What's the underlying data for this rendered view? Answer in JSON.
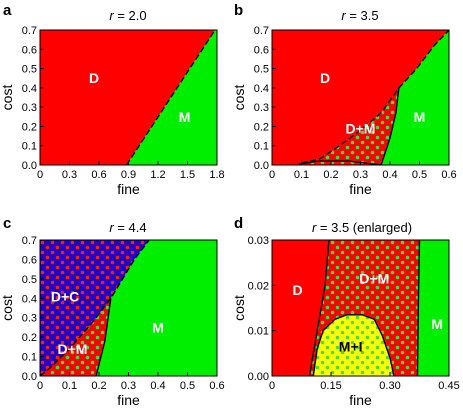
{
  "colors": {
    "D": "#ff0000",
    "M": "#00ee00",
    "C": "#2200cc",
    "I": "#ffff00",
    "dots_green": "#44dd44",
    "dots_blue": "#4433ff",
    "dots_red": "#ff2200"
  },
  "chart_data": [
    {
      "type": "phase-diagram",
      "panel": "a",
      "title": "r = 2.0",
      "title_prefix": "r",
      "title_value": " = 2.0",
      "xlabel": "fine",
      "ylabel": "cost",
      "xlim": [
        0,
        1.8
      ],
      "ylim": [
        0,
        0.7
      ],
      "xticks": [
        "0",
        "0.3",
        "0.6",
        "0.9",
        "1.2",
        "1.5",
        "1.8"
      ],
      "xtick_values": [
        0,
        0.3,
        0.6,
        0.9,
        1.2,
        1.5,
        1.8
      ],
      "yticks": [
        "0.0",
        "0.1",
        "0.2",
        "0.3",
        "0.4",
        "0.5",
        "0.6",
        "0.7"
      ],
      "ytick_values": [
        0,
        0.1,
        0.2,
        0.3,
        0.4,
        0.5,
        0.6,
        0.7
      ],
      "regions": [
        {
          "label": "D",
          "fill": "D",
          "label_at": [
            0.55,
            0.45
          ],
          "polygon": [
            [
              0,
              0
            ],
            [
              0.88,
              0
            ],
            [
              1.78,
              0.7
            ],
            [
              0,
              0.7
            ]
          ]
        },
        {
          "label": "M",
          "fill": "M",
          "label_at": [
            1.47,
            0.25
          ],
          "polygon": [
            [
              0.88,
              0
            ],
            [
              1.8,
              0
            ],
            [
              1.8,
              0.7
            ],
            [
              1.78,
              0.7
            ]
          ]
        }
      ],
      "boundaries": [
        {
          "style": "dashed",
          "points": [
            [
              0.88,
              0
            ],
            [
              1.78,
              0.7
            ]
          ]
        }
      ]
    },
    {
      "type": "phase-diagram",
      "panel": "b",
      "title": "r = 3.5",
      "title_prefix": "r",
      "title_value": " = 3.5",
      "xlabel": "fine",
      "ylabel": "cost",
      "xlim": [
        0,
        0.6
      ],
      "ylim": [
        0,
        0.7
      ],
      "xticks": [
        "0",
        "0.1",
        "0.2",
        "0.3",
        "0.4",
        "0.5",
        "0.6"
      ],
      "xtick_values": [
        0,
        0.1,
        0.2,
        0.3,
        0.4,
        0.5,
        0.6
      ],
      "yticks": [
        "0.0",
        "0.1",
        "0.2",
        "0.3",
        "0.4",
        "0.5",
        "0.6",
        "0.7"
      ],
      "ytick_values": [
        0,
        0.1,
        0.2,
        0.3,
        0.4,
        0.5,
        0.6,
        0.7
      ],
      "regions": [
        {
          "label": "D",
          "fill": "D",
          "label_at": [
            0.18,
            0.45
          ],
          "polygon": [
            [
              0,
              0
            ],
            [
              0.09,
              0
            ],
            [
              0.1,
              0.01
            ],
            [
              0.16,
              0.03
            ],
            [
              0.22,
              0.09
            ],
            [
              0.3,
              0.18
            ],
            [
              0.37,
              0.27
            ],
            [
              0.43,
              0.4
            ],
            [
              0.49,
              0.5
            ],
            [
              0.55,
              0.62
            ],
            [
              0.6,
              0.7
            ],
            [
              0,
              0.7
            ]
          ]
        },
        {
          "label": "D+M",
          "fill": "D",
          "dots": "dots_green",
          "label_at": [
            0.3,
            0.19
          ],
          "polygon": [
            [
              0.09,
              0
            ],
            [
              0.37,
              0
            ],
            [
              0.4,
              0.14
            ],
            [
              0.42,
              0.27
            ],
            [
              0.43,
              0.4
            ],
            [
              0.37,
              0.27
            ],
            [
              0.3,
              0.18
            ],
            [
              0.22,
              0.09
            ],
            [
              0.16,
              0.03
            ],
            [
              0.1,
              0.01
            ]
          ]
        },
        {
          "label": "M",
          "fill": "M",
          "label_at": [
            0.5,
            0.25
          ],
          "polygon": [
            [
              0.37,
              0
            ],
            [
              0.6,
              0
            ],
            [
              0.6,
              0.7
            ],
            [
              0.55,
              0.62
            ],
            [
              0.49,
              0.5
            ],
            [
              0.43,
              0.4
            ],
            [
              0.42,
              0.27
            ],
            [
              0.4,
              0.14
            ]
          ]
        }
      ],
      "boundaries": [
        {
          "style": "solid",
          "points": [
            [
              0.09,
              0.005
            ],
            [
              0.16,
              0.02
            ],
            [
              0.26,
              0.02
            ],
            [
              0.37,
              0
            ]
          ]
        },
        {
          "style": "solid",
          "points": [
            [
              0.37,
              0
            ],
            [
              0.4,
              0.14
            ],
            [
              0.42,
              0.27
            ],
            [
              0.43,
              0.4
            ]
          ]
        },
        {
          "style": "dashed",
          "points": [
            [
              0.1,
              0.01
            ],
            [
              0.16,
              0.03
            ],
            [
              0.22,
              0.09
            ],
            [
              0.3,
              0.18
            ],
            [
              0.37,
              0.27
            ],
            [
              0.43,
              0.4
            ],
            [
              0.49,
              0.5
            ],
            [
              0.55,
              0.62
            ],
            [
              0.6,
              0.7
            ]
          ]
        }
      ]
    },
    {
      "type": "phase-diagram",
      "panel": "c",
      "title": "r = 4.4",
      "title_prefix": "r",
      "title_value": " = 4.4",
      "xlabel": "fine",
      "ylabel": "cost",
      "xlim": [
        0,
        0.6
      ],
      "ylim": [
        0,
        0.7
      ],
      "xticks": [
        "0",
        "0.1",
        "0.2",
        "0.3",
        "0.4",
        "0.5",
        "0.6"
      ],
      "xtick_values": [
        0,
        0.1,
        0.2,
        0.3,
        0.4,
        0.5,
        0.6
      ],
      "yticks": [
        "0.0",
        "0.1",
        "0.2",
        "0.3",
        "0.4",
        "0.5",
        "0.6",
        "0.7"
      ],
      "ytick_values": [
        0,
        0.1,
        0.2,
        0.3,
        0.4,
        0.5,
        0.6,
        0.7
      ],
      "regions": [
        {
          "label": "D+C",
          "fill": "C",
          "dots": "dots_red",
          "label_at": [
            0.085,
            0.41
          ],
          "polygon": [
            [
              0,
              0
            ],
            [
              0.04,
              0.05
            ],
            [
              0.1,
              0.14
            ],
            [
              0.18,
              0.28
            ],
            [
              0.24,
              0.4
            ],
            [
              0.28,
              0.5
            ],
            [
              0.32,
              0.6
            ],
            [
              0.37,
              0.7
            ],
            [
              0,
              0.7
            ]
          ]
        },
        {
          "label": "D+M",
          "fill": "D",
          "dots": "dots_green",
          "label_at": [
            0.11,
            0.14
          ],
          "polygon": [
            [
              0,
              0
            ],
            [
              0.19,
              0
            ],
            [
              0.22,
              0.18
            ],
            [
              0.24,
              0.4
            ],
            [
              0.18,
              0.28
            ],
            [
              0.1,
              0.14
            ],
            [
              0.04,
              0.05
            ]
          ]
        },
        {
          "label": "M",
          "fill": "M",
          "label_at": [
            0.4,
            0.25
          ],
          "polygon": [
            [
              0.19,
              0
            ],
            [
              0.6,
              0
            ],
            [
              0.6,
              0.7
            ],
            [
              0.37,
              0.7
            ],
            [
              0.32,
              0.6
            ],
            [
              0.28,
              0.5
            ],
            [
              0.24,
              0.4
            ],
            [
              0.22,
              0.18
            ]
          ]
        }
      ],
      "boundaries": [
        {
          "style": "solid",
          "points": [
            [
              0.19,
              0
            ],
            [
              0.22,
              0.18
            ],
            [
              0.24,
              0.4
            ]
          ]
        },
        {
          "style": "dashed",
          "points": [
            [
              0,
              0
            ],
            [
              0.04,
              0.05
            ],
            [
              0.1,
              0.14
            ],
            [
              0.18,
              0.28
            ],
            [
              0.24,
              0.4
            ],
            [
              0.28,
              0.5
            ],
            [
              0.32,
              0.6
            ],
            [
              0.37,
              0.7
            ]
          ]
        }
      ]
    },
    {
      "type": "phase-diagram",
      "panel": "d",
      "title": "r = 3.5 (enlarged)",
      "title_prefix": "r",
      "title_value": " = 3.5 (enlarged)",
      "xlabel": "fine",
      "ylabel": "cost",
      "xlim": [
        0,
        0.45
      ],
      "ylim": [
        0,
        0.03
      ],
      "xticks": [
        "0",
        "0.15",
        "0.30",
        "0.45"
      ],
      "xtick_values": [
        0,
        0.15,
        0.3,
        0.45
      ],
      "yticks": [
        "0.00",
        "0.01",
        "0.02",
        "0.03"
      ],
      "ytick_values": [
        0,
        0.01,
        0.02,
        0.03
      ],
      "regions": [
        {
          "label": "D",
          "fill": "D",
          "label_at": [
            0.065,
            0.019
          ],
          "polygon": [
            [
              0,
              0
            ],
            [
              0.095,
              0
            ],
            [
              0.115,
              0.01
            ],
            [
              0.135,
              0.02
            ],
            [
              0.145,
              0.03
            ],
            [
              0,
              0.03
            ]
          ]
        },
        {
          "label": "D+M",
          "fill": "D",
          "dots": "dots_green",
          "label_at": [
            0.26,
            0.0215
          ],
          "polygon": [
            [
              0.095,
              0
            ],
            [
              0.37,
              0
            ],
            [
              0.372,
              0.015
            ],
            [
              0.375,
              0.03
            ],
            [
              0.145,
              0.03
            ],
            [
              0.135,
              0.02
            ],
            [
              0.115,
              0.01
            ]
          ]
        },
        {
          "label": "M+I",
          "fill": "I",
          "dots": "dots_green",
          "label_at": [
            0.2,
            0.0065
          ],
          "polygon": [
            [
              0.105,
              0
            ],
            [
              0.31,
              0
            ],
            [
              0.3,
              0.004
            ],
            [
              0.28,
              0.009
            ],
            [
              0.26,
              0.0125
            ],
            [
              0.23,
              0.0135
            ],
            [
              0.19,
              0.0135
            ],
            [
              0.16,
              0.0125
            ],
            [
              0.13,
              0.01
            ],
            [
              0.115,
              0.006
            ]
          ]
        },
        {
          "label": "M",
          "fill": "M",
          "label_at": [
            0.42,
            0.0115
          ],
          "polygon": [
            [
              0.37,
              0
            ],
            [
              0.45,
              0
            ],
            [
              0.45,
              0.03
            ],
            [
              0.375,
              0.03
            ],
            [
              0.372,
              0.015
            ]
          ]
        }
      ],
      "boundaries": [
        {
          "style": "solid",
          "points": [
            [
              0.095,
              0
            ],
            [
              0.115,
              0.01
            ],
            [
              0.135,
              0.02
            ],
            [
              0.145,
              0.03
            ]
          ]
        },
        {
          "style": "solid",
          "points": [
            [
              0.105,
              0
            ],
            [
              0.115,
              0.006
            ],
            [
              0.13,
              0.01
            ],
            [
              0.16,
              0.0125
            ],
            [
              0.19,
              0.0135
            ],
            [
              0.23,
              0.0135
            ],
            [
              0.26,
              0.0125
            ],
            [
              0.28,
              0.009
            ],
            [
              0.3,
              0.004
            ],
            [
              0.31,
              0
            ]
          ]
        },
        {
          "style": "solid",
          "points": [
            [
              0.37,
              0
            ],
            [
              0.372,
              0.015
            ],
            [
              0.375,
              0.03
            ]
          ]
        }
      ]
    }
  ]
}
